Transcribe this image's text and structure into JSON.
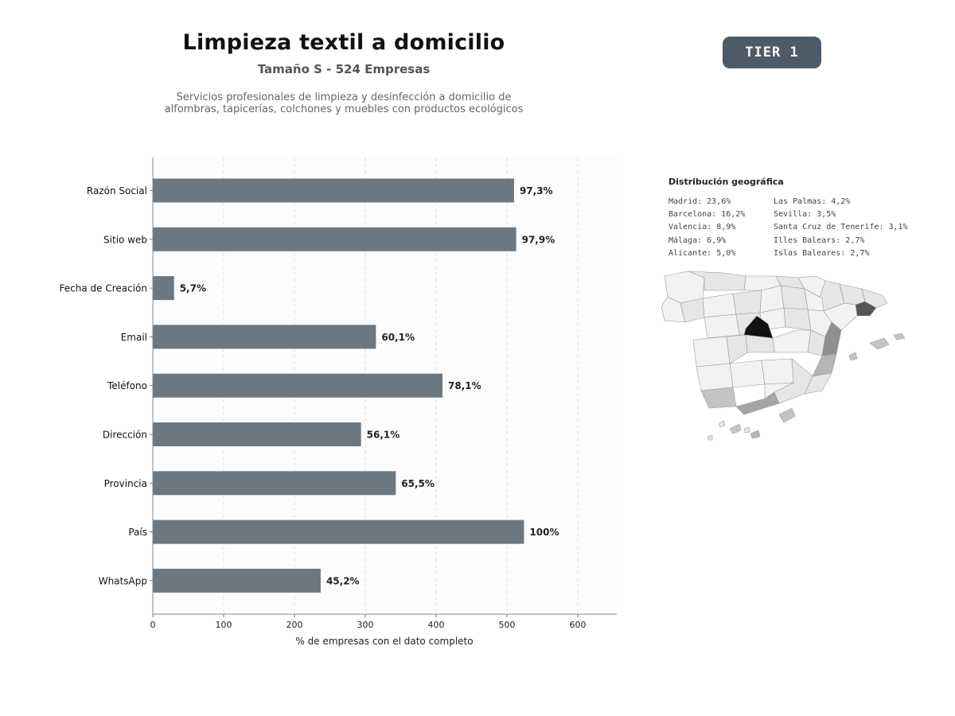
{
  "header": {
    "title": "Limpieza textil a domicilio",
    "subtitle": "Tamaño S - 524 Empresas",
    "description_line1": "Servicios profesionales de limpieza y desinfección a domicilio de",
    "description_line2": "alfombras, tapicerías, colchones y muebles con productos ecológicos",
    "tier_badge": "TIER 1"
  },
  "chart_data": {
    "type": "bar",
    "orientation": "horizontal",
    "categories": [
      "Razón Social",
      "Sitio web",
      "Fecha de Creación",
      "Email",
      "Teléfono",
      "Dirección",
      "Provincia",
      "País",
      "WhatsApp"
    ],
    "values": [
      510,
      513,
      30,
      315,
      409,
      294,
      343,
      524,
      237
    ],
    "data_labels": [
      "97,3%",
      "97,9%",
      "5,7%",
      "60,1%",
      "78,1%",
      "56,1%",
      "65,5%",
      "100%",
      "45,2%"
    ],
    "xlabel": "% de empresas con el dato completo",
    "xlim": [
      0,
      655
    ],
    "xticks": [
      0,
      100,
      200,
      300,
      400,
      500,
      600
    ],
    "grid": "vertical-dashed",
    "bar_color": "#6c7780"
  },
  "geo": {
    "title": "Distribución geográfica",
    "col1": [
      "Madrid: 23,6%",
      "Barcelona: 16,2%",
      "Valencia: 8,9%",
      "Málaga: 6,9%",
      "Alicante: 5,0%"
    ],
    "col2": [
      "Las Palmas: 4,2%",
      "Sevilla: 3,5%",
      "Santa Cruz de Tenerife: 3,1%",
      "Illes Balears: 2,7%",
      "Islas Baleares: 2,7%"
    ]
  },
  "map_colors": {
    "madrid": "#111111",
    "barcelona": "#555555",
    "valencia": "#8f8f8f",
    "malaga": "#a5a5a5",
    "alicante": "#b5b5b5",
    "sevilla": "#c4c4c4",
    "other": "#e6e6e6",
    "light": "#f2f2f2"
  }
}
